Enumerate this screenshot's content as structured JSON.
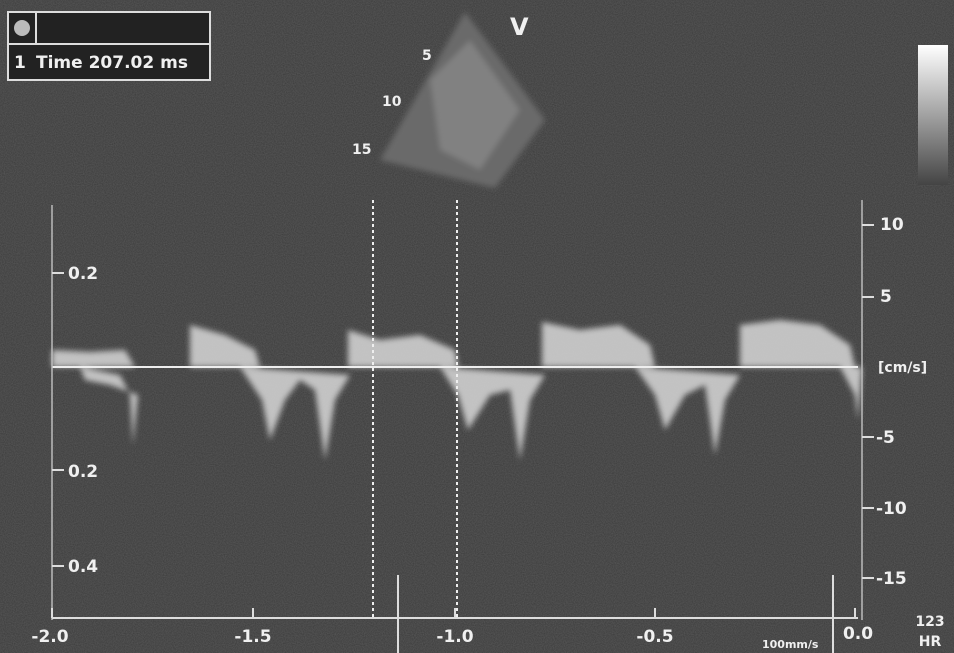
{
  "header": {
    "cursor": "1",
    "measurement": "Time 207.02 ms"
  },
  "probe": {
    "label": "V",
    "depth_labels": [
      "5",
      "10",
      "15"
    ]
  },
  "left_scale": [
    "0.2",
    "0.2",
    "0.4"
  ],
  "right_scale": [
    "10",
    "5",
    "[cm/s]",
    "-5",
    "-10",
    "-15"
  ],
  "time_axis": [
    "-2.0",
    "-1.5",
    "-1.0",
    "-0.5",
    "0.0"
  ],
  "sweep_speed": "100mm/s",
  "heart_rate": {
    "value": "123",
    "label": "HR"
  }
}
